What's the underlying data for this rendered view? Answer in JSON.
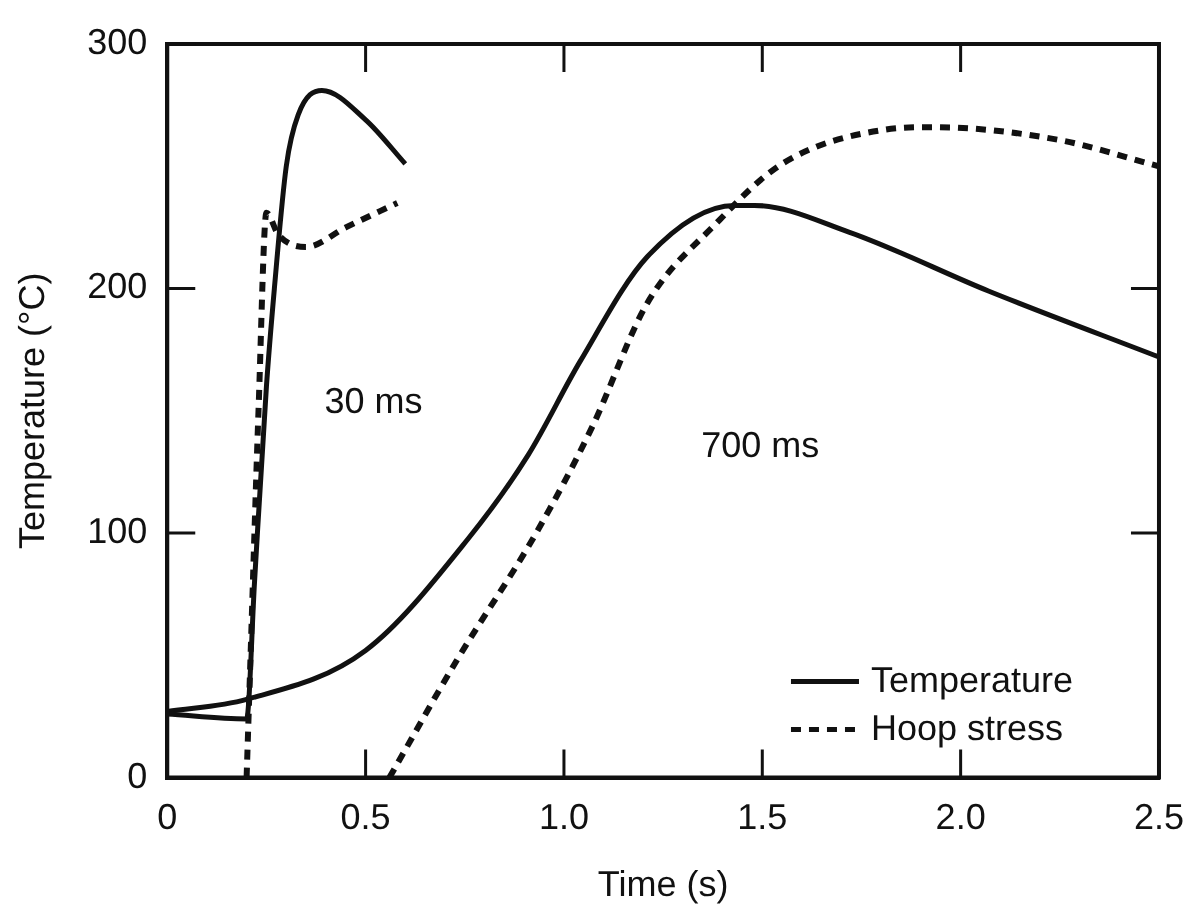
{
  "chart_data": {
    "type": "line",
    "xlabel": "Time (s)",
    "ylabel": "Temperature (°C)",
    "xlim": [
      0,
      2.5
    ],
    "xticks": [
      {
        "value": 0,
        "label": "0"
      },
      {
        "value": 0.5,
        "label": "0.5"
      },
      {
        "value": 1,
        "label": "1.0"
      },
      {
        "value": 1.5,
        "label": "1.5"
      },
      {
        "value": 2,
        "label": "2.0"
      },
      {
        "value": 2.5,
        "label": "2.5"
      }
    ],
    "ylim": [
      0,
      300
    ],
    "yticks": [
      0,
      100,
      200,
      300
    ],
    "grid": false,
    "legend": "bottom right",
    "marker": "none",
    "annotations": [
      "30 ms",
      "700 ms"
    ],
    "series": [
      {
        "name": "Temperature",
        "color": "#111111",
        "line_style": "solid",
        "x": [
          0,
          0.2,
          0.22,
          0.25,
          0.27,
          0.3,
          0.33,
          0.39,
          0.5,
          0.6
        ],
        "values": [
          26,
          24,
          80,
          160,
          200,
          250,
          271,
          281,
          269,
          251
        ]
      },
      {
        "name": "Hoop stress",
        "color": "#111111",
        "line_style": "dashed",
        "x": [
          0.2,
          0.21,
          0.23,
          0.25,
          0.28,
          0.35,
          0.45,
          0.58
        ],
        "values": [
          0,
          50,
          150,
          231,
          222,
          217,
          225,
          235
        ]
      },
      {
        "color": "#111111",
        "line_style": "solid",
        "x": [
          0,
          0.2,
          0.5,
          0.76,
          0.91,
          1.04,
          1.21,
          1.43,
          1.48,
          1.72,
          2.07,
          2.5
        ],
        "values": [
          27,
          32,
          52,
          98,
          132,
          170,
          213,
          234,
          234,
          223,
          199,
          172
        ]
      },
      {
        "color": "#111111",
        "line_style": "dashed",
        "x": [
          0.56,
          0.73,
          0.93,
          1.07,
          1.21,
          1.38,
          1.55,
          1.81,
          1.93,
          2.24,
          2.5
        ],
        "values": [
          0,
          48,
          100,
          143,
          194,
          226,
          251,
          265,
          266,
          261,
          250
        ]
      }
    ]
  }
}
